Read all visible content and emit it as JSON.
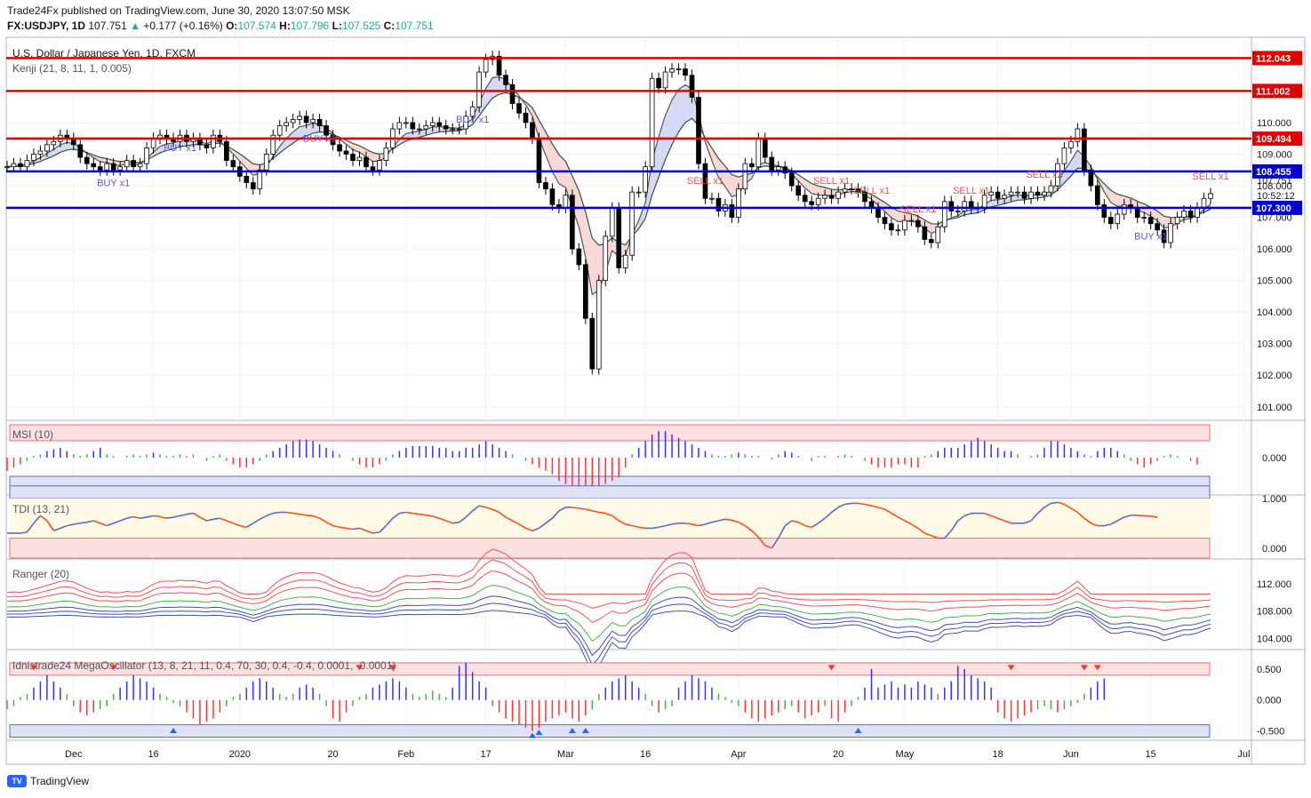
{
  "header": {
    "publisher_line": "Trade24Fx published on TradingView.com, June 30, 2020 13:07:50 MSK",
    "symbol": "FX:USDJPY, 1D",
    "last": "107.751",
    "change": "+0.177 (+0.16%)",
    "open_label": "O:",
    "open": "107.574",
    "high_label": "H:",
    "high": "107.796",
    "low_label": "L:",
    "low": "107.525",
    "close_label": "C:",
    "close": "107.751",
    "up_arrow": "▲"
  },
  "footer": {
    "brand": "TradingView",
    "logo_icon": "tradingview-logo-icon"
  },
  "colors": {
    "up": "#26a69a",
    "down": "#ef5350",
    "red_line": "#e00000",
    "blue_line": "#0000cc",
    "indicator_blue": "#3333ff",
    "indicator_red": "#ff3333"
  },
  "chart_data": [
    {
      "type": "candlestick",
      "title": "U.S. Dollar / Japanese Yen, 1D, FXCM",
      "indicator_label": "Kenji (21, 8, 11, 1, 0.005)",
      "ylim": [
        100.6,
        112.7
      ],
      "y_ticks": [
        "112.000",
        "111.000",
        "110.000",
        "109.000",
        "108.000",
        "107.000",
        "106.000",
        "105.000",
        "104.000",
        "103.000",
        "102.000",
        "101.000"
      ],
      "y_tick_values": [
        112,
        111,
        110,
        109,
        108,
        107,
        106,
        105,
        104,
        103,
        102,
        101
      ],
      "x_labels": [
        "Dec",
        "16",
        "2020",
        "20",
        "Feb",
        "17",
        "Mar",
        "16",
        "Apr",
        "20",
        "May",
        "18",
        "Jun",
        "15",
        "Jul"
      ],
      "x_label_index": [
        10,
        22,
        35,
        49,
        60,
        72,
        84,
        96,
        110,
        125,
        135,
        149,
        160,
        172,
        186
      ],
      "horizontal_lines": [
        {
          "value": 112.043,
          "label": "112.043",
          "color": "#e00000"
        },
        {
          "value": 111.002,
          "label": "111.002",
          "color": "#e00000"
        },
        {
          "value": 109.494,
          "label": "109.494",
          "color": "#e00000"
        },
        {
          "value": 108.455,
          "label": "108.455",
          "color": "#0000cc"
        },
        {
          "value": 107.3,
          "label": "107.300",
          "color": "#0000cc"
        }
      ],
      "last_price_label": "107.751",
      "countdown_label": "10:52:12",
      "closes": [
        108.6,
        108.7,
        108.6,
        108.8,
        109.0,
        109.1,
        109.3,
        109.4,
        109.6,
        109.5,
        109.3,
        108.9,
        108.7,
        108.6,
        108.5,
        108.7,
        108.5,
        108.6,
        108.8,
        108.6,
        108.7,
        109.2,
        109.5,
        109.6,
        109.5,
        109.4,
        109.6,
        109.4,
        109.5,
        109.3,
        109.2,
        109.6,
        109.4,
        108.8,
        108.6,
        108.3,
        108.1,
        107.9,
        108.5,
        109.0,
        109.6,
        109.9,
        110.0,
        110.1,
        110.2,
        110.0,
        110.1,
        109.9,
        109.6,
        109.3,
        109.1,
        109.0,
        108.8,
        108.9,
        108.6,
        108.5,
        108.8,
        109.2,
        109.8,
        110.0,
        110.0,
        109.8,
        109.8,
        109.9,
        110.0,
        109.9,
        109.8,
        109.8,
        109.8,
        110.2,
        110.5,
        111.6,
        112.0,
        112.1,
        111.5,
        111.2,
        110.6,
        110.3,
        110.0,
        109.5,
        108.1,
        107.9,
        107.4,
        107.3,
        107.7,
        106.0,
        105.5,
        103.8,
        102.2,
        105.0,
        106.4,
        107.3,
        105.4,
        105.8,
        107.8,
        107.8,
        108.6,
        111.4,
        111.1,
        111.6,
        111.7,
        111.7,
        111.5,
        110.8,
        108.7,
        107.6,
        107.6,
        107.2,
        107.4,
        107.0,
        107.9,
        108.7,
        108.6,
        109.5,
        108.9,
        108.5,
        108.6,
        108.4,
        108.0,
        107.7,
        107.5,
        107.4,
        107.6,
        107.7,
        107.6,
        107.8,
        107.9,
        107.9,
        107.8,
        107.5,
        107.3,
        107.0,
        106.8,
        106.6,
        106.6,
        106.9,
        106.9,
        106.7,
        106.3,
        106.2,
        106.7,
        107.5,
        107.2,
        107.2,
        107.5,
        107.3,
        107.3,
        107.7,
        107.8,
        107.6,
        107.7,
        107.8,
        107.8,
        107.6,
        107.8,
        107.7,
        107.8,
        108.0,
        108.7,
        109.2,
        109.4,
        109.8,
        108.5,
        108.0,
        107.4,
        107.0,
        106.8,
        107.1,
        107.4,
        107.3,
        107.0,
        107.0,
        106.8,
        106.6,
        106.2,
        106.8,
        107.0,
        107.2,
        107.0,
        107.3,
        107.6,
        107.751
      ],
      "signals": [
        "BUY x1",
        "BUY x1",
        "BUY x1",
        "BUY x1",
        "SELL x1",
        "SELL x1",
        "SELL x1",
        "SELL x1",
        "SELL x1",
        "SELL x2",
        "BUY x1",
        "SELL x1"
      ]
    },
    {
      "type": "bar",
      "title": "MSI (10)",
      "ylim": [
        -1.1,
        1.1
      ],
      "y_ticks": [
        "0.000"
      ],
      "y_tick_values": [
        0
      ],
      "values": [
        -0.4,
        -0.3,
        -0.2,
        -0.1,
        0.05,
        0.1,
        0.2,
        0.25,
        0.3,
        0.2,
        0.1,
        0.05,
        0.1,
        0.2,
        0.3,
        0.1,
        0.05,
        0.0,
        0.05,
        0.1,
        0.05,
        0.1,
        0.15,
        0.1,
        0.05,
        0.05,
        0.1,
        0.05,
        0.1,
        0.0,
        -0.1,
        0.05,
        0.1,
        -0.1,
        -0.2,
        -0.3,
        -0.3,
        -0.2,
        -0.1,
        0.1,
        0.2,
        0.3,
        0.4,
        0.5,
        0.55,
        0.55,
        0.5,
        0.4,
        0.3,
        0.2,
        0.1,
        0.0,
        -0.1,
        -0.2,
        -0.3,
        -0.3,
        -0.2,
        -0.1,
        0.1,
        0.2,
        0.3,
        0.35,
        0.35,
        0.35,
        0.35,
        0.3,
        0.3,
        0.2,
        0.2,
        0.3,
        0.3,
        0.4,
        0.5,
        0.4,
        0.3,
        0.2,
        0.1,
        0.0,
        -0.1,
        -0.2,
        -0.3,
        -0.4,
        -0.5,
        -0.7,
        -0.8,
        -0.9,
        -1.0,
        -1.05,
        -1.0,
        -0.9,
        -0.8,
        -0.7,
        -0.6,
        -0.3,
        0.1,
        0.3,
        0.5,
        0.7,
        0.8,
        0.8,
        0.7,
        0.6,
        0.5,
        0.4,
        0.3,
        0.2,
        0.1,
        0.05,
        0.05,
        0.1,
        0.15,
        0.1,
        0.05,
        0.05,
        0.0,
        -0.05,
        0.1,
        0.2,
        0.15,
        0.05,
        0.0,
        -0.1,
        0.05,
        0.05,
        0.0,
        0.05,
        0.1,
        0.05,
        0.0,
        -0.1,
        -0.2,
        -0.3,
        -0.3,
        -0.3,
        -0.2,
        -0.2,
        -0.3,
        -0.3,
        0.05,
        0.1,
        0.2,
        0.3,
        0.3,
        0.3,
        0.4,
        0.5,
        0.6,
        0.5,
        0.4,
        0.3,
        0.2,
        0.2,
        0.1,
        0.0,
        0.05,
        0.1,
        0.3,
        0.5,
        0.5,
        0.4,
        0.3,
        0.2,
        0.1,
        0.05,
        0.2,
        0.3,
        0.3,
        0.2,
        0.1,
        -0.1,
        -0.2,
        -0.3,
        -0.2,
        -0.1,
        0.05,
        0.1,
        0.05,
        0.0,
        -0.1,
        -0.2
      ]
    },
    {
      "type": "line",
      "title": "TDI (13, 21)",
      "ylim": [
        -0.2,
        1.05
      ],
      "y_ticks": [
        "1.000",
        "0.000"
      ],
      "y_tick_values": [
        1,
        0
      ],
      "values": [
        0.3,
        0.3,
        0.3,
        0.32,
        0.5,
        0.65,
        0.55,
        0.35,
        0.4,
        0.45,
        0.48,
        0.5,
        0.52,
        0.55,
        0.5,
        0.45,
        0.5,
        0.55,
        0.6,
        0.63,
        0.6,
        0.62,
        0.65,
        0.63,
        0.6,
        0.62,
        0.65,
        0.68,
        0.7,
        0.62,
        0.55,
        0.58,
        0.6,
        0.55,
        0.5,
        0.45,
        0.42,
        0.5,
        0.58,
        0.65,
        0.7,
        0.72,
        0.72,
        0.7,
        0.68,
        0.66,
        0.65,
        0.6,
        0.52,
        0.45,
        0.42,
        0.4,
        0.38,
        0.4,
        0.35,
        0.3,
        0.32,
        0.45,
        0.6,
        0.7,
        0.72,
        0.7,
        0.68,
        0.66,
        0.64,
        0.6,
        0.55,
        0.5,
        0.52,
        0.62,
        0.75,
        0.85,
        0.82,
        0.78,
        0.72,
        0.62,
        0.55,
        0.48,
        0.4,
        0.35,
        0.4,
        0.5,
        0.6,
        0.75,
        0.82,
        0.82,
        0.8,
        0.78,
        0.75,
        0.72,
        0.7,
        0.65,
        0.55,
        0.48,
        0.45,
        0.42,
        0.4,
        0.4,
        0.42,
        0.45,
        0.48,
        0.5,
        0.5,
        0.48,
        0.45,
        0.48,
        0.52,
        0.55,
        0.58,
        0.56,
        0.52,
        0.45,
        0.35,
        0.22,
        0.05,
        0.0,
        0.2,
        0.45,
        0.55,
        0.52,
        0.45,
        0.42,
        0.5,
        0.6,
        0.72,
        0.82,
        0.88,
        0.9,
        0.9,
        0.88,
        0.85,
        0.82,
        0.78,
        0.7,
        0.62,
        0.55,
        0.48,
        0.4,
        0.3,
        0.25,
        0.2,
        0.2,
        0.35,
        0.55,
        0.65,
        0.7,
        0.7,
        0.7,
        0.65,
        0.6,
        0.55,
        0.5,
        0.5,
        0.5,
        0.55,
        0.7,
        0.82,
        0.9,
        0.92,
        0.88,
        0.8,
        0.72,
        0.6,
        0.5,
        0.45,
        0.45,
        0.48,
        0.55,
        0.62,
        0.66,
        0.66,
        0.65,
        0.64,
        0.62
      ]
    },
    {
      "type": "line",
      "title": "Ranger (20)",
      "ylim": [
        102.5,
        115.5
      ],
      "y_ticks": [
        "112.000",
        "108.000",
        "104.000"
      ],
      "y_tick_values": [
        112,
        108,
        104
      ]
    },
    {
      "type": "bar",
      "title": "Idnistrade24 MegaOscillator (13, 8, 21, 11, 0.4, 70, 30, 0.4, -0.4, 0.0001, -0.0001)",
      "ylim": [
        -0.65,
        0.8
      ],
      "y_ticks": [
        "0.500",
        "0.000",
        "-0.500"
      ],
      "y_tick_values": [
        0.5,
        0,
        -0.5
      ],
      "values": [
        -0.15,
        -0.1,
        0.05,
        0.1,
        0.2,
        0.3,
        0.4,
        0.3,
        0.2,
        0.1,
        -0.1,
        -0.2,
        -0.25,
        -0.2,
        -0.15,
        -0.1,
        0.1,
        0.2,
        0.3,
        0.4,
        0.35,
        0.3,
        0.2,
        0.1,
        0.05,
        -0.05,
        -0.1,
        -0.2,
        -0.3,
        -0.4,
        -0.35,
        -0.3,
        -0.2,
        -0.1,
        0.05,
        0.1,
        0.2,
        0.3,
        0.35,
        0.3,
        0.2,
        0.1,
        0.05,
        0.1,
        0.2,
        0.25,
        0.2,
        0.1,
        -0.1,
        -0.3,
        -0.35,
        -0.2,
        -0.1,
        0.05,
        0.1,
        0.2,
        0.25,
        0.3,
        0.35,
        0.3,
        0.2,
        0.1,
        0.05,
        0.1,
        0.15,
        0.1,
        0.05,
        0.2,
        0.55,
        0.6,
        0.45,
        0.3,
        0.2,
        -0.1,
        -0.2,
        -0.3,
        -0.35,
        -0.4,
        -0.45,
        -0.5,
        -0.45,
        -0.35,
        -0.3,
        -0.25,
        -0.2,
        -0.3,
        -0.35,
        -0.25,
        -0.15,
        0.1,
        0.2,
        0.3,
        0.35,
        0.4,
        0.3,
        0.2,
        0.1,
        -0.1,
        -0.2,
        -0.15,
        -0.1,
        0.2,
        0.3,
        0.4,
        0.35,
        0.3,
        0.2,
        0.1,
        0.05,
        -0.05,
        -0.1,
        -0.2,
        -0.3,
        -0.35,
        -0.3,
        -0.25,
        -0.2,
        -0.15,
        -0.1,
        -0.2,
        -0.3,
        -0.25,
        -0.2,
        -0.1,
        -0.3,
        -0.35,
        -0.2,
        -0.1,
        0.05,
        0.2,
        0.5,
        0.2,
        0.25,
        0.3,
        0.2,
        0.25,
        0.2,
        0.3,
        0.25,
        0.2,
        0.1,
        0.2,
        0.3,
        0.55,
        0.5,
        0.4,
        0.35,
        0.3,
        0.2,
        -0.2,
        -0.3,
        -0.35,
        -0.3,
        -0.25,
        -0.2,
        -0.15,
        -0.1,
        -0.15,
        -0.2,
        -0.15,
        -0.1,
        -0.05,
        0.1,
        0.2,
        0.3,
        0.35
      ],
      "signal_down_index": [
        4,
        16,
        53,
        58,
        124,
        151,
        162,
        164
      ],
      "signal_up_index": [
        25,
        79,
        80,
        85,
        87,
        128,
        170
      ]
    }
  ]
}
